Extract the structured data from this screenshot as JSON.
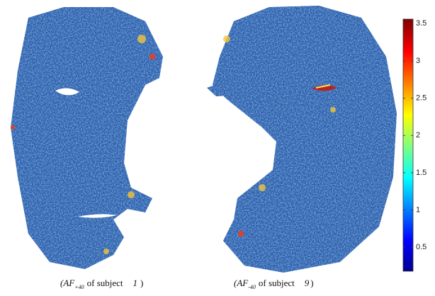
{
  "colorbar": {
    "lim": [
      0.18,
      3.56
    ],
    "ticks": [
      0.5,
      1,
      1.5,
      2,
      2.5,
      3,
      3.5
    ]
  },
  "captions": [
    {
      "open": "(AF",
      "sub": "+40",
      "middle": "of subject",
      "subject": "1",
      "close": ")"
    },
    {
      "open": "(AF",
      "sub": "-40",
      "middle": "of subject",
      "subject": "9",
      "close": ")"
    }
  ]
}
